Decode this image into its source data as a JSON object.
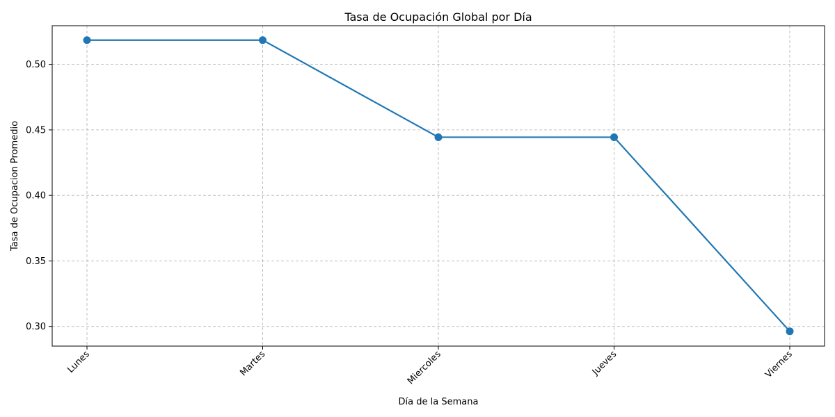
{
  "chart_data": {
    "type": "line",
    "title": "Tasa de Ocupación Global por Día",
    "xlabel": "Día de la Semana",
    "ylabel": "Tasa de Ocupacion Promedio",
    "categories": [
      "Lunes",
      "Martes",
      "Miercoles",
      "Jueves",
      "Viernes"
    ],
    "series": [
      {
        "values": [
          0.5185,
          0.5185,
          0.4444,
          0.4444,
          0.2963
        ],
        "color": "#1f77b4"
      }
    ],
    "yticks": [
      0.3,
      0.35,
      0.4,
      0.45,
      0.5
    ],
    "ytick_labels": [
      "0.30",
      "0.35",
      "0.40",
      "0.45",
      "0.50"
    ],
    "ylim": [
      0.285,
      0.5295
    ],
    "grid": true,
    "marker": "circle"
  }
}
